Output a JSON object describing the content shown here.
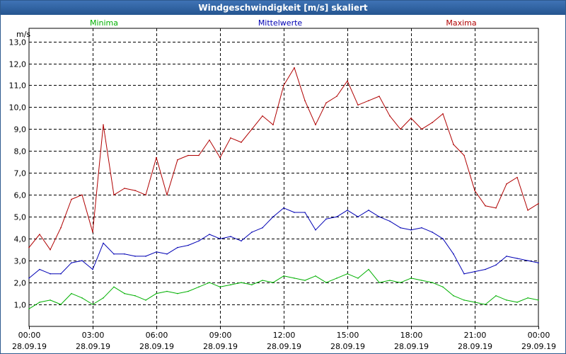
{
  "window": {
    "title": "Windgeschwindigkeit [m/s] skaliert"
  },
  "chart_data": {
    "type": "line",
    "title": "Windgeschwindigkeit [m/s] skaliert",
    "ylabel": "m/s",
    "xlabel": "",
    "xlim": [
      0,
      24
    ],
    "ylim": [
      0,
      13.6
    ],
    "grid": true,
    "y_ticks": [
      {
        "value": 1,
        "label": "1,0"
      },
      {
        "value": 2,
        "label": "2,0"
      },
      {
        "value": 3,
        "label": "3,0"
      },
      {
        "value": 4,
        "label": "4,0"
      },
      {
        "value": 5,
        "label": "5,0"
      },
      {
        "value": 6,
        "label": "6,0"
      },
      {
        "value": 7,
        "label": "7,0"
      },
      {
        "value": 8,
        "label": "8,0"
      },
      {
        "value": 9,
        "label": "9,0"
      },
      {
        "value": 10,
        "label": "10,0"
      },
      {
        "value": 11,
        "label": "11,0"
      },
      {
        "value": 12,
        "label": "12,0"
      },
      {
        "value": 13,
        "label": "13,0"
      }
    ],
    "x_ticks": [
      {
        "value": 0,
        "time": "00:00",
        "date": "28.09.19"
      },
      {
        "value": 3,
        "time": "03:00",
        "date": "28.09.19"
      },
      {
        "value": 6,
        "time": "06:00",
        "date": "28.09.19"
      },
      {
        "value": 9,
        "time": "09:00",
        "date": "28.09.19"
      },
      {
        "value": 12,
        "time": "12:00",
        "date": "28.09.19"
      },
      {
        "value": 15,
        "time": "15:00",
        "date": "28.09.19"
      },
      {
        "value": 18,
        "time": "18:00",
        "date": "28.09.19"
      },
      {
        "value": 21,
        "time": "21:00",
        "date": "28.09.19"
      },
      {
        "value": 24,
        "time": "00:00",
        "date": "29.09.19"
      }
    ],
    "series": [
      {
        "name": "Minima",
        "color": "#00b000",
        "x": [
          0,
          0.5,
          1,
          1.5,
          2,
          2.5,
          3,
          3.5,
          4,
          4.5,
          5,
          5.5,
          6,
          6.5,
          7,
          7.5,
          8,
          8.5,
          9,
          9.5,
          10,
          10.5,
          11,
          11.5,
          12,
          12.5,
          13,
          13.5,
          14,
          14.5,
          15,
          15.5,
          16,
          16.5,
          17,
          17.5,
          18,
          18.5,
          19,
          19.5,
          20,
          20.5,
          21,
          21.5,
          22,
          22.5,
          23,
          23.5,
          24
        ],
        "values": [
          0.8,
          1.1,
          1.2,
          1.0,
          1.5,
          1.3,
          1.0,
          1.3,
          1.8,
          1.5,
          1.4,
          1.2,
          1.5,
          1.6,
          1.5,
          1.6,
          1.8,
          2.0,
          1.8,
          1.9,
          2.0,
          1.9,
          2.1,
          2.0,
          2.3,
          2.2,
          2.1,
          2.3,
          2.0,
          2.2,
          2.4,
          2.2,
          2.6,
          2.0,
          2.1,
          2.0,
          2.2,
          2.1,
          2.0,
          1.8,
          1.4,
          1.2,
          1.1,
          1.0,
          1.4,
          1.2,
          1.1,
          1.3,
          1.2
        ]
      },
      {
        "name": "Mittelwerte",
        "color": "#0000b4",
        "x": [
          0,
          0.5,
          1,
          1.5,
          2,
          2.5,
          3,
          3.5,
          4,
          4.5,
          5,
          5.5,
          6,
          6.5,
          7,
          7.5,
          8,
          8.5,
          9,
          9.5,
          10,
          10.5,
          11,
          11.5,
          12,
          12.5,
          13,
          13.5,
          14,
          14.5,
          15,
          15.5,
          16,
          16.5,
          17,
          17.5,
          18,
          18.5,
          19,
          19.5,
          20,
          20.5,
          21,
          21.5,
          22,
          22.5,
          23,
          23.5,
          24
        ],
        "values": [
          2.2,
          2.6,
          2.4,
          2.4,
          2.9,
          3.0,
          2.6,
          3.8,
          3.3,
          3.3,
          3.2,
          3.2,
          3.4,
          3.3,
          3.6,
          3.7,
          3.9,
          4.2,
          4.0,
          4.1,
          3.9,
          4.3,
          4.5,
          5.0,
          5.4,
          5.2,
          5.2,
          4.4,
          4.9,
          5.0,
          5.3,
          5.0,
          5.3,
          5.0,
          4.8,
          4.5,
          4.4,
          4.5,
          4.3,
          4.0,
          3.3,
          2.4,
          2.5,
          2.6,
          2.8,
          3.2,
          3.1,
          3.0,
          2.9
        ]
      },
      {
        "name": "Maxima",
        "color": "#b00000",
        "x": [
          0,
          0.5,
          1,
          1.5,
          2,
          2.5,
          3,
          3.5,
          4,
          4.5,
          5,
          5.5,
          6,
          6.5,
          7,
          7.5,
          8,
          8.5,
          9,
          9.5,
          10,
          10.5,
          11,
          11.5,
          12,
          12.5,
          13,
          13.5,
          14,
          14.5,
          15,
          15.5,
          16,
          16.5,
          17,
          17.5,
          18,
          18.5,
          19,
          19.5,
          20,
          20.5,
          21,
          21.5,
          22,
          22.5,
          23,
          23.5,
          24
        ],
        "values": [
          3.6,
          4.2,
          3.5,
          4.5,
          5.8,
          6.0,
          4.3,
          9.2,
          6.0,
          6.3,
          6.2,
          6.0,
          7.7,
          6.0,
          7.6,
          7.8,
          7.8,
          8.5,
          7.7,
          8.6,
          8.4,
          9.0,
          9.6,
          9.2,
          11.0,
          11.8,
          10.3,
          9.2,
          10.2,
          10.5,
          11.2,
          10.1,
          10.3,
          10.5,
          9.6,
          9.0,
          9.5,
          9.0,
          9.3,
          9.7,
          8.3,
          7.8,
          6.2,
          5.5,
          5.4,
          6.5,
          6.8,
          5.3,
          5.6
        ]
      }
    ]
  }
}
